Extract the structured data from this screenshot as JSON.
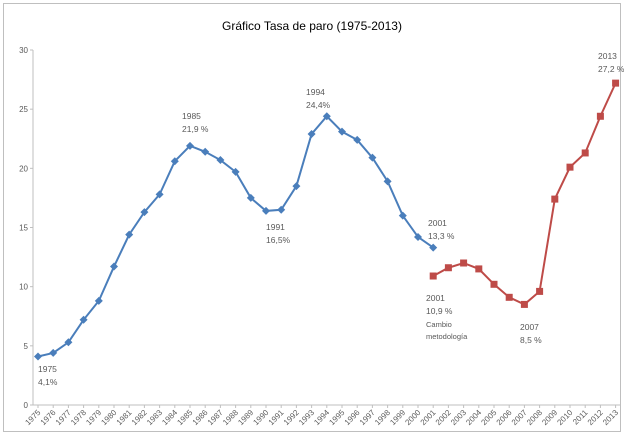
{
  "chart_data": {
    "type": "line",
    "title": "Gráfico  Tasa de paro (1975-2013)",
    "categories": [
      "1975",
      "1976",
      "1977",
      "1978",
      "1979",
      "1980",
      "1981",
      "1982",
      "1983",
      "1984",
      "1985",
      "1986",
      "1987",
      "1988",
      "1989",
      "1990",
      "1991",
      "1992",
      "1993",
      "1994",
      "1995",
      "1996",
      "1997",
      "1998",
      "1999",
      "2000",
      "2001",
      "2002",
      "2003",
      "2004",
      "2005",
      "2006",
      "2007",
      "2008",
      "2009",
      "2010",
      "2011",
      "2012",
      "2013"
    ],
    "series": [
      {
        "color": "#4a7ebb",
        "marker": "diamond",
        "values": [
          4.1,
          4.4,
          5.3,
          7.2,
          8.8,
          11.7,
          14.4,
          16.3,
          17.8,
          20.6,
          21.9,
          21.4,
          20.7,
          19.7,
          17.5,
          16.4,
          16.5,
          18.5,
          22.9,
          24.4,
          23.1,
          22.4,
          20.9,
          18.9,
          16.0,
          14.2,
          13.3,
          null,
          null,
          null,
          null,
          null,
          null,
          null,
          null,
          null,
          null,
          null,
          null
        ]
      },
      {
        "color": "#be4b48",
        "marker": "square",
        "values": [
          null,
          null,
          null,
          null,
          null,
          null,
          null,
          null,
          null,
          null,
          null,
          null,
          null,
          null,
          null,
          null,
          null,
          null,
          null,
          null,
          null,
          null,
          null,
          null,
          null,
          null,
          10.9,
          11.6,
          12.0,
          11.5,
          10.2,
          9.1,
          8.5,
          9.6,
          17.4,
          20.1,
          21.3,
          24.4,
          27.2
        ]
      }
    ],
    "ylim": [
      0,
      30
    ],
    "yticks": [
      0,
      5,
      10,
      15,
      20,
      25,
      30
    ],
    "annotations": [
      {
        "lines": [
          "1975",
          "4,1%"
        ]
      },
      {
        "lines": [
          "1985",
          "21,9 %"
        ]
      },
      {
        "lines": [
          "1991",
          "16,5%"
        ]
      },
      {
        "lines": [
          "1994",
          "24,4%"
        ]
      },
      {
        "lines": [
          "2001",
          "13,3 %"
        ]
      },
      {
        "lines": [
          "2001",
          "10,9 %",
          "Cambio",
          "metodología"
        ]
      },
      {
        "lines": [
          "2007",
          "8,5 %"
        ]
      },
      {
        "lines": [
          "2013",
          "27,2 %"
        ]
      }
    ]
  }
}
